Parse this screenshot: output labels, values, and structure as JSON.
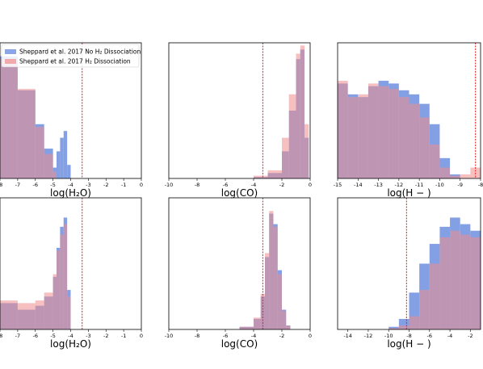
{
  "legend": {
    "entries": [
      {
        "label": "Sheppard et al. 2017 No H₂ Dissociation",
        "color": "#6e8fe0"
      },
      {
        "label": "Sheppard et al. 2017  H₂ Dissociation",
        "color": "#f08c8c"
      }
    ]
  },
  "colors": {
    "series_blue": "#6e8fe0",
    "series_red": "#f08c8c",
    "overlap": "#8a6fb8",
    "ref_line": "#e02020"
  },
  "chart_data": [
    {
      "type": "histogram",
      "xlabel": "log(H₂O)",
      "xlim": [
        -8,
        0
      ],
      "xticks": [
        -8,
        -7,
        -6,
        -5,
        -4,
        -3,
        -2,
        -1,
        0
      ],
      "ylim": [
        0,
        1
      ],
      "yticks": [],
      "reference_line_x": -3.35,
      "series": [
        {
          "name": "Sheppard et al. 2017 No H₂ Dissociation",
          "edges": [
            -8,
            -7,
            -6,
            -5.5,
            -5,
            -4.8,
            -4.6,
            -4.4,
            -4.2,
            -4
          ],
          "values": [
            0.9,
            0.65,
            0.4,
            0.22,
            0.08,
            0.2,
            0.3,
            0.35,
            0.1
          ]
        },
        {
          "name": "Sheppard et al. 2017  H₂ Dissociation",
          "edges": [
            -8,
            -7,
            -6,
            -5.5,
            -5,
            -4.8
          ],
          "values": [
            0.88,
            0.66,
            0.38,
            0.18,
            0.05
          ]
        }
      ]
    },
    {
      "type": "histogram",
      "xlabel": "log(CO)",
      "xlim": [
        -10,
        0
      ],
      "xticks": [
        -10,
        -8,
        -6,
        -4,
        -2,
        0
      ],
      "ylim": [
        0,
        1
      ],
      "yticks": [],
      "reference_line_x": -3.35,
      "series": [
        {
          "name": "Sheppard et al. 2017 No H₂ Dissociation",
          "edges": [
            -4,
            -3,
            -2,
            -1.5,
            -1,
            -0.7,
            -0.4,
            -0.1
          ],
          "values": [
            0.01,
            0.04,
            0.2,
            0.5,
            0.88,
            0.95,
            0.3
          ]
        },
        {
          "name": "Sheppard et al. 2017  H₂ Dissociation",
          "edges": [
            -4,
            -3,
            -2,
            -1.5,
            -1,
            -0.7,
            -0.4,
            -0.1
          ],
          "values": [
            0.02,
            0.06,
            0.3,
            0.62,
            0.92,
            0.98,
            0.4
          ]
        }
      ]
    },
    {
      "type": "histogram",
      "xlabel": "log(H − )",
      "xlim": [
        -15,
        -8
      ],
      "xticks": [
        -15,
        -14,
        -13,
        -12,
        -11,
        -10,
        -9,
        -8
      ],
      "ylim": [
        0,
        1
      ],
      "yticks": [],
      "reference_line_x": -8.25,
      "series": [
        {
          "name": "Sheppard et al. 2017 No H₂ Dissociation",
          "edges": [
            -15,
            -14.5,
            -14,
            -13.5,
            -13,
            -12.5,
            -12,
            -11.5,
            -11,
            -10.5,
            -10,
            -9.5,
            -9
          ],
          "values": [
            0.7,
            0.62,
            0.6,
            0.68,
            0.72,
            0.7,
            0.65,
            0.62,
            0.55,
            0.4,
            0.15,
            0.03
          ]
        },
        {
          "name": "Sheppard et al. 2017  H₂ Dissociation",
          "edges": [
            -15,
            -14.5,
            -14,
            -13.5,
            -13,
            -12.5,
            -12,
            -11.5,
            -11,
            -10.5,
            -10,
            -9.5,
            -9,
            -8.5,
            -8
          ],
          "values": [
            0.72,
            0.6,
            0.62,
            0.7,
            0.68,
            0.66,
            0.6,
            0.55,
            0.45,
            0.25,
            0.08,
            0.02,
            0.03,
            0.08
          ]
        }
      ]
    },
    {
      "type": "histogram",
      "xlabel": "log(H₂O)",
      "xlim": [
        -8,
        0
      ],
      "xticks": [
        -8,
        -7,
        -6,
        -5,
        -4,
        -3,
        -2,
        -1,
        0
      ],
      "ylim": [
        0,
        1
      ],
      "yticks": [],
      "reference_line_x": -3.35,
      "series": [
        {
          "name": "Sheppard et al. 2017 No H₂ Dissociation",
          "edges": [
            -8,
            -7,
            -6,
            -5.5,
            -5,
            -4.8,
            -4.6,
            -4.4,
            -4.2,
            -4
          ],
          "values": [
            0.2,
            0.15,
            0.18,
            0.25,
            0.4,
            0.62,
            0.78,
            0.85,
            0.3
          ]
        },
        {
          "name": "Sheppard et al. 2017  H₂ Dissociation",
          "edges": [
            -8,
            -7,
            -6,
            -5.5,
            -5,
            -4.8,
            -4.6,
            -4.4,
            -4.2,
            -4
          ],
          "values": [
            0.22,
            0.2,
            0.22,
            0.28,
            0.42,
            0.6,
            0.72,
            0.8,
            0.25
          ]
        }
      ]
    },
    {
      "type": "histogram",
      "xlabel": "log(CO)",
      "xlim": [
        -10,
        0
      ],
      "xticks": [
        -10,
        -8,
        -6,
        -4,
        -2,
        0
      ],
      "ylim": [
        0,
        1
      ],
      "yticks": [],
      "reference_line_x": -3.35,
      "series": [
        {
          "name": "Sheppard et al. 2017 No H₂ Dissociation",
          "edges": [
            -5,
            -4,
            -3.5,
            -3.2,
            -2.9,
            -2.6,
            -2.3,
            -2,
            -1.7,
            -1.4
          ],
          "values": [
            0.02,
            0.08,
            0.25,
            0.55,
            0.88,
            0.8,
            0.45,
            0.15,
            0.03
          ]
        },
        {
          "name": "Sheppard et al. 2017  H₂ Dissociation",
          "edges": [
            -5,
            -4,
            -3.5,
            -3.2,
            -2.9,
            -2.6,
            -2.3,
            -2,
            -1.7,
            -1.4
          ],
          "values": [
            0.02,
            0.09,
            0.27,
            0.58,
            0.9,
            0.78,
            0.42,
            0.14,
            0.03
          ]
        }
      ]
    },
    {
      "type": "histogram",
      "xlabel": "log(H − )",
      "xlim": [
        -15,
        -1
      ],
      "xticks": [
        -14,
        -12,
        -10,
        -8,
        -6,
        -4,
        -2
      ],
      "ylim": [
        0,
        1
      ],
      "yticks": [],
      "reference_line_x": -8.25,
      "series": [
        {
          "name": "Sheppard et al. 2017 No H₂ Dissociation",
          "edges": [
            -10,
            -9,
            -8,
            -7,
            -6,
            -5,
            -4,
            -3,
            -2,
            -1
          ],
          "values": [
            0.02,
            0.08,
            0.28,
            0.5,
            0.65,
            0.78,
            0.85,
            0.8,
            0.75
          ]
        },
        {
          "name": "Sheppard et al. 2017  H₂ Dissociation",
          "edges": [
            -10,
            -9,
            -8,
            -7,
            -6,
            -5,
            -4,
            -3,
            -2,
            -1
          ],
          "values": [
            0.01,
            0.03,
            0.1,
            0.3,
            0.5,
            0.7,
            0.75,
            0.72,
            0.7
          ]
        }
      ]
    }
  ]
}
